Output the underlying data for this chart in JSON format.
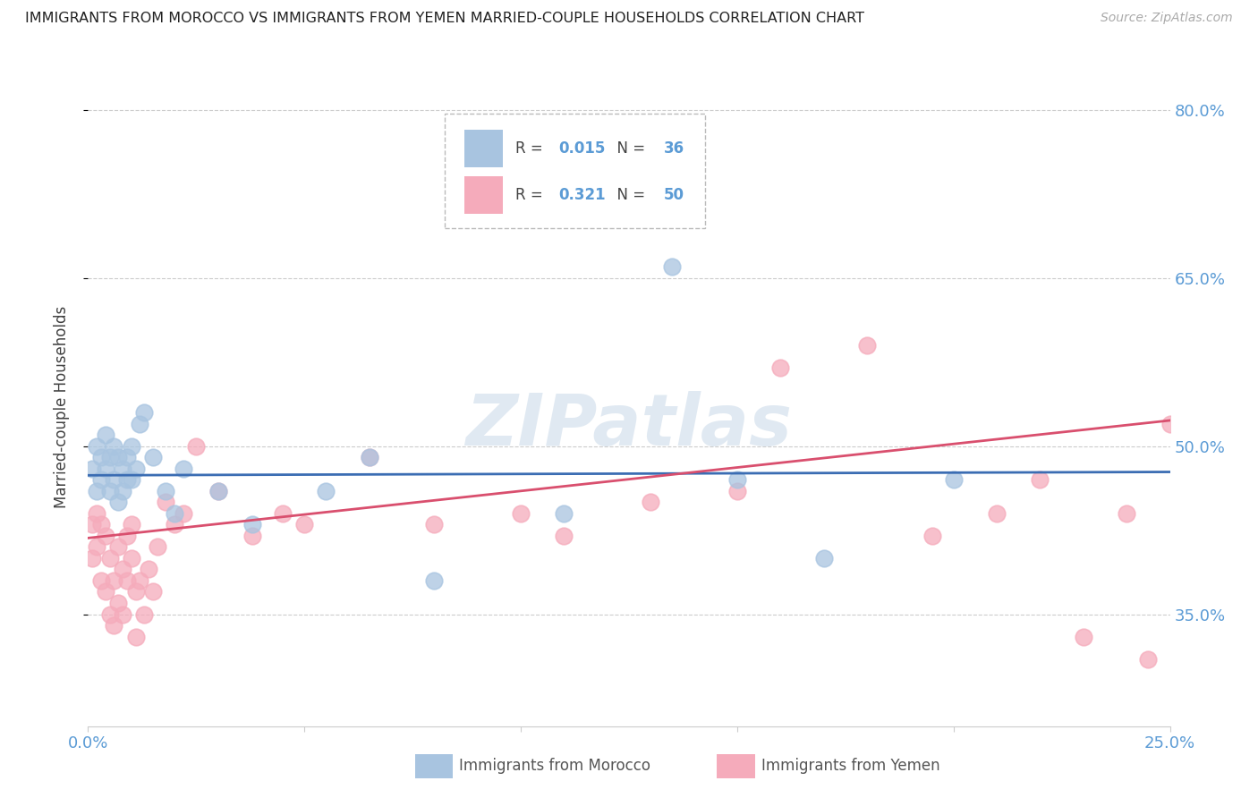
{
  "title": "IMMIGRANTS FROM MOROCCO VS IMMIGRANTS FROM YEMEN MARRIED-COUPLE HOUSEHOLDS CORRELATION CHART",
  "source": "Source: ZipAtlas.com",
  "ylabel": "Married-couple Households",
  "xlim": [
    0.0,
    0.25
  ],
  "ylim": [
    0.25,
    0.82
  ],
  "ytick_positions": [
    0.35,
    0.5,
    0.65,
    0.8
  ],
  "ytick_labels": [
    "35.0%",
    "50.0%",
    "65.0%",
    "80.0%"
  ],
  "xtick_positions": [
    0.0,
    0.05,
    0.1,
    0.15,
    0.2,
    0.25
  ],
  "xtick_labels": [
    "0.0%",
    "",
    "",
    "",
    "",
    "25.0%"
  ],
  "morocco_R": 0.015,
  "morocco_N": 36,
  "yemen_R": 0.321,
  "yemen_N": 50,
  "morocco_color": "#A8C4E0",
  "yemen_color": "#F5ABBB",
  "morocco_line_color": "#3B6DB3",
  "yemen_line_color": "#D94F6E",
  "watermark": "ZIPatlas",
  "watermark_color": "#C8D8E8",
  "background_color": "#FFFFFF",
  "grid_color": "#CCCCCC",
  "tick_color": "#5B9BD5",
  "label_color": "#404040",
  "source_color": "#AAAAAA",
  "morocco_line_y0": 0.474,
  "morocco_line_y1": 0.477,
  "yemen_line_y0": 0.418,
  "yemen_line_y1": 0.523,
  "morocco_x": [
    0.001,
    0.002,
    0.002,
    0.003,
    0.003,
    0.004,
    0.004,
    0.005,
    0.005,
    0.006,
    0.006,
    0.007,
    0.007,
    0.008,
    0.008,
    0.009,
    0.009,
    0.01,
    0.01,
    0.011,
    0.012,
    0.013,
    0.015,
    0.018,
    0.02,
    0.022,
    0.03,
    0.038,
    0.055,
    0.065,
    0.08,
    0.11,
    0.15,
    0.17,
    0.2,
    0.135
  ],
  "morocco_y": [
    0.48,
    0.5,
    0.46,
    0.49,
    0.47,
    0.51,
    0.48,
    0.49,
    0.46,
    0.5,
    0.47,
    0.49,
    0.45,
    0.48,
    0.46,
    0.47,
    0.49,
    0.5,
    0.47,
    0.48,
    0.52,
    0.53,
    0.49,
    0.46,
    0.44,
    0.48,
    0.46,
    0.43,
    0.46,
    0.49,
    0.38,
    0.44,
    0.47,
    0.4,
    0.47,
    0.66
  ],
  "yemen_x": [
    0.001,
    0.001,
    0.002,
    0.002,
    0.003,
    0.003,
    0.004,
    0.004,
    0.005,
    0.005,
    0.006,
    0.006,
    0.007,
    0.007,
    0.008,
    0.008,
    0.009,
    0.009,
    0.01,
    0.01,
    0.011,
    0.011,
    0.012,
    0.013,
    0.014,
    0.015,
    0.016,
    0.018,
    0.02,
    0.022,
    0.025,
    0.03,
    0.038,
    0.045,
    0.05,
    0.065,
    0.08,
    0.1,
    0.11,
    0.13,
    0.15,
    0.16,
    0.18,
    0.195,
    0.21,
    0.22,
    0.23,
    0.24,
    0.245,
    0.25
  ],
  "yemen_y": [
    0.43,
    0.4,
    0.44,
    0.41,
    0.43,
    0.38,
    0.42,
    0.37,
    0.4,
    0.35,
    0.38,
    0.34,
    0.41,
    0.36,
    0.39,
    0.35,
    0.42,
    0.38,
    0.43,
    0.4,
    0.37,
    0.33,
    0.38,
    0.35,
    0.39,
    0.37,
    0.41,
    0.45,
    0.43,
    0.44,
    0.5,
    0.46,
    0.42,
    0.44,
    0.43,
    0.49,
    0.43,
    0.44,
    0.42,
    0.45,
    0.46,
    0.57,
    0.59,
    0.42,
    0.44,
    0.47,
    0.33,
    0.44,
    0.31,
    0.52
  ]
}
